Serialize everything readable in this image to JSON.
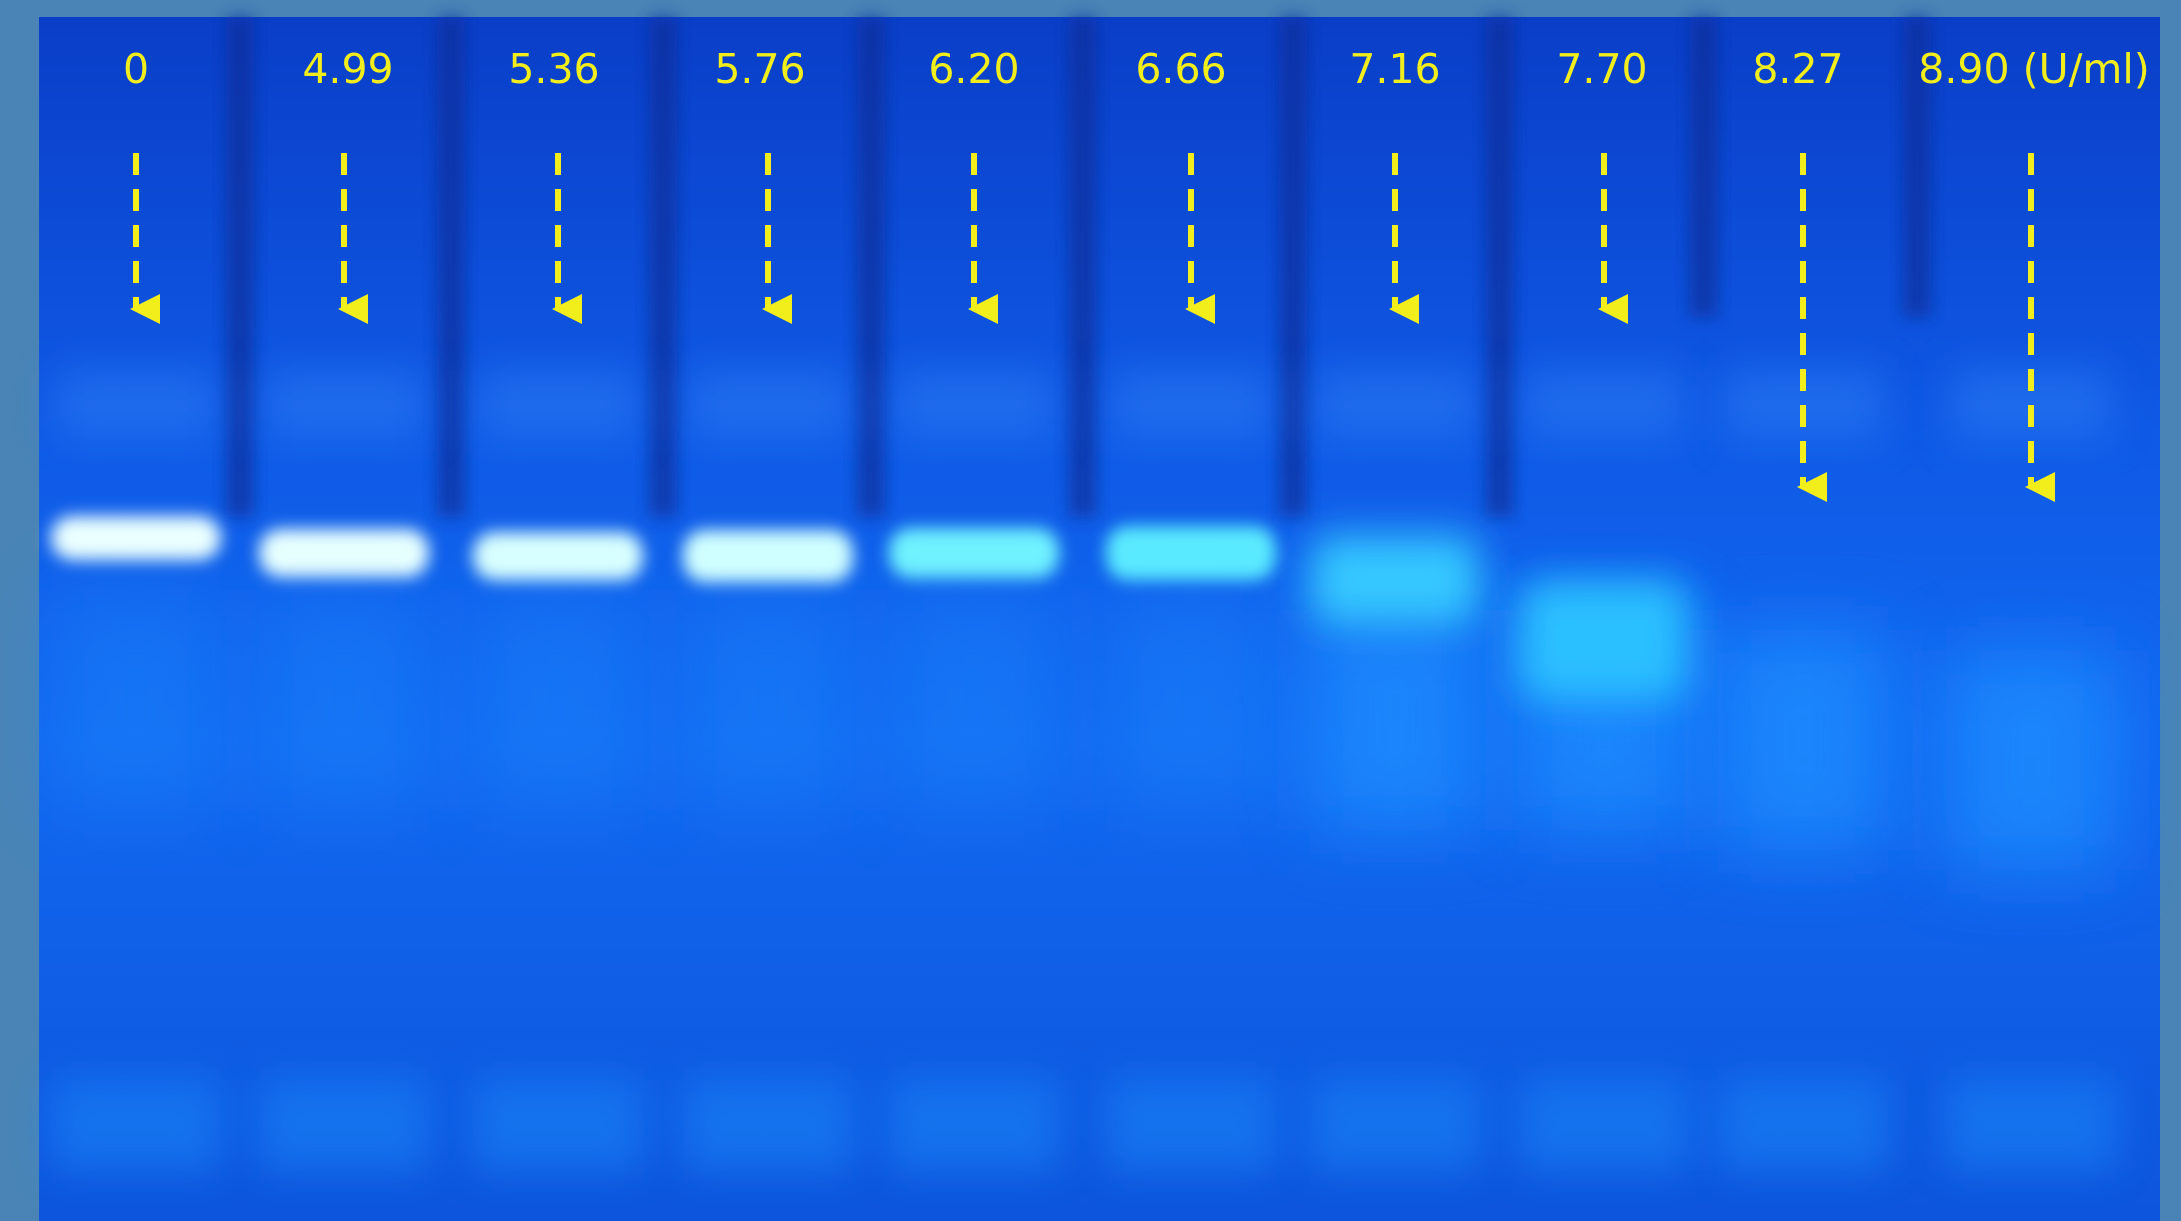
{
  "lane_labels": [
    "0",
    "4.99",
    "5.36",
    "5.76",
    "6.20",
    "6.66",
    "7.16",
    "7.70",
    "8.27",
    "8.90 (U/ml)"
  ]
}
